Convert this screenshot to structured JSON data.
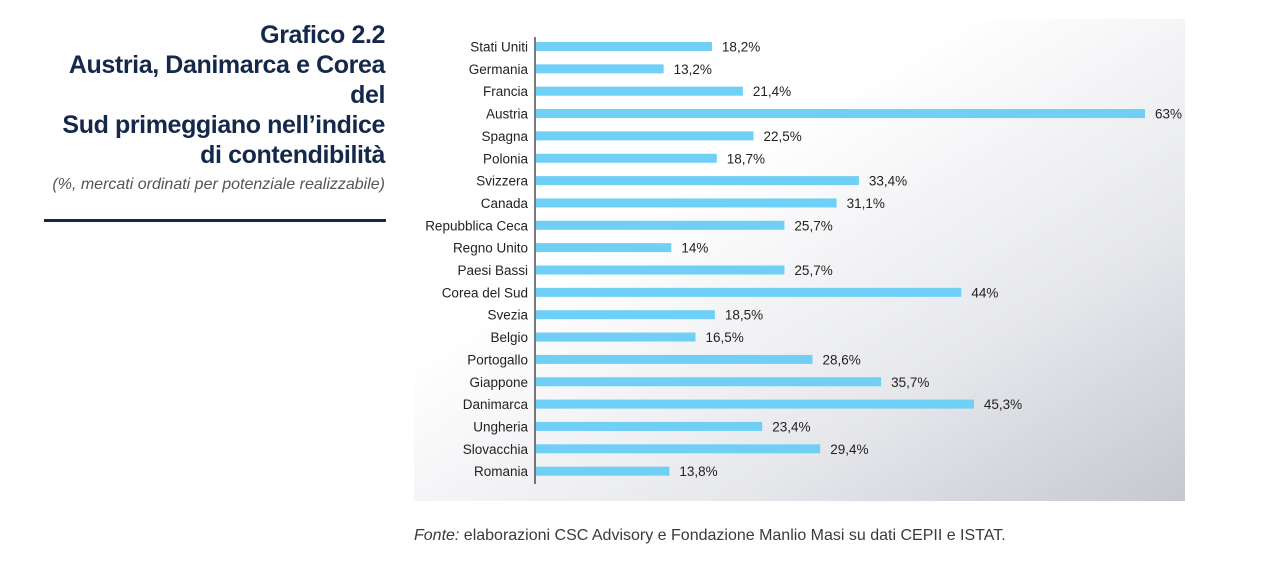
{
  "caption": {
    "label": "Grafico 2.2",
    "title_lines": [
      "Austria, Danimarca e Corea del",
      "Sud primeggiano nell’indice",
      "di contendibilità"
    ],
    "subtitle": "(%, mercati ordinati per potenziale realizzabile)"
  },
  "source": {
    "prefix": "Fonte:",
    "text": " elaborazioni CSC Advisory e Fondazione Manlio Masi su dati CEPII e ISTAT."
  },
  "colors": {
    "bar": "#6fcff5",
    "title": "#14284b",
    "axis": "#222222"
  },
  "chart_data": {
    "type": "bar",
    "orientation": "horizontal",
    "categories": [
      "Stati Uniti",
      "Germania",
      "Francia",
      "Austria",
      "Spagna",
      "Polonia",
      "Svizzera",
      "Canada",
      "Repubblica Ceca",
      "Regno Unito",
      "Paesi Bassi",
      "Corea del Sud",
      "Svezia",
      "Belgio",
      "Portogallo",
      "Giappone",
      "Danimarca",
      "Ungheria",
      "Slovacchia",
      "Romania"
    ],
    "values": [
      18.2,
      13.2,
      21.4,
      63,
      22.5,
      18.7,
      33.4,
      31.1,
      25.7,
      14,
      25.7,
      44,
      18.5,
      16.5,
      28.6,
      35.7,
      45.3,
      23.4,
      29.4,
      13.8
    ],
    "value_labels": [
      "18,2%",
      "13,2%",
      "21,4%",
      "63%",
      "22,5%",
      "18,7%",
      "33,4%",
      "31,1%",
      "25,7%",
      "14%",
      "25,7%",
      "44%",
      "18,5%",
      "16,5%",
      "28,6%",
      "35,7%",
      "45,3%",
      "23,4%",
      "29,4%",
      "13,8%"
    ],
    "xlim": [
      0,
      63
    ],
    "grid": false,
    "legend": "none"
  }
}
